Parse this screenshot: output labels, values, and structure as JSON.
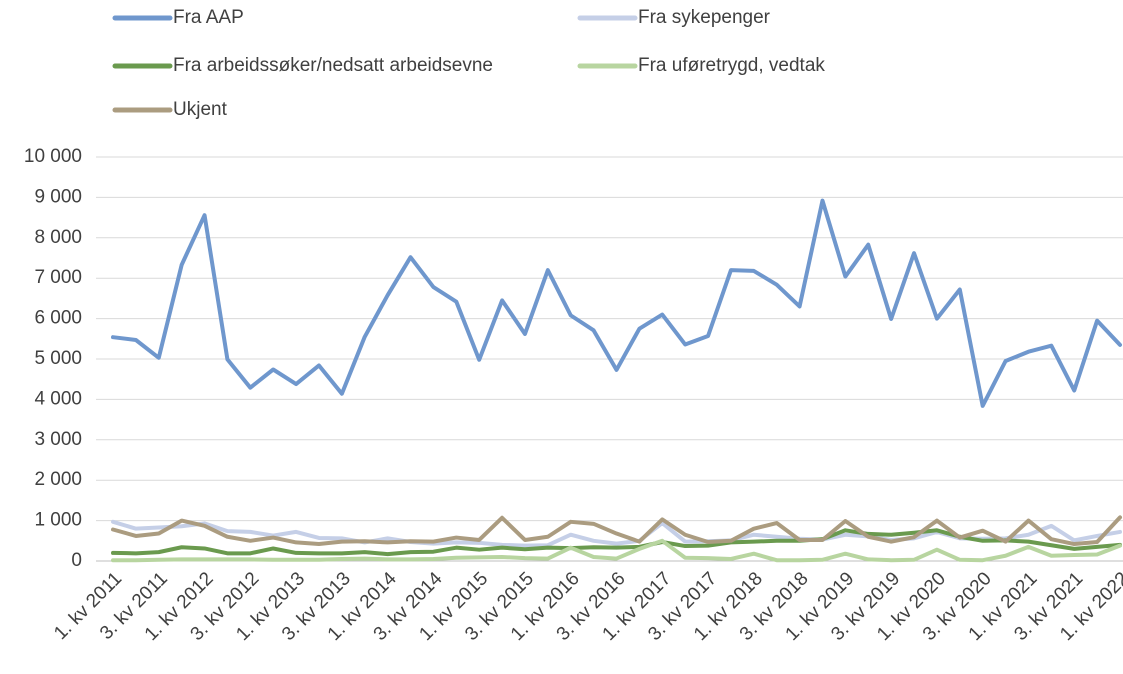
{
  "chart_data": {
    "type": "line",
    "categories": [
      "1. kv 2011",
      null,
      "3. kv 2011",
      null,
      "1. kv 2012",
      null,
      "3. kv 2012",
      null,
      "1. kv 2013",
      null,
      "3. kv 2013",
      null,
      "1. kv 2014",
      null,
      "3. kv 2014",
      null,
      "1. kv 2015",
      null,
      "3. kv 2015",
      null,
      "1. kv 2016",
      null,
      "3. kv 2016",
      null,
      "1. kv 2017",
      null,
      "3. kv 2017",
      null,
      "1. kv 2018",
      null,
      "3. kv 2018",
      null,
      "1. kv 2019",
      null,
      "3. kv 2019",
      null,
      "1. kv 2020",
      null,
      "3. kv 2020",
      null,
      "1. kv 2021",
      null,
      "3. kv 2021",
      null,
      "1. kv 2022"
    ],
    "series": [
      {
        "name": "Fra AAP",
        "color": "#6f97cd",
        "values": [
          5540,
          5470,
          5030,
          7330,
          8560,
          4990,
          4290,
          4740,
          4380,
          4840,
          4140,
          5550,
          6580,
          7520,
          6780,
          6420,
          4980,
          6450,
          5620,
          7200,
          6080,
          5710,
          4730,
          5750,
          6100,
          5360,
          5570,
          7200,
          7180,
          6840,
          6300,
          8920,
          7040,
          7830,
          5990,
          7620,
          6000,
          6720,
          3840,
          4950,
          5180,
          5330,
          4220,
          5950,
          5350
        ]
      },
      {
        "name": "Fra sykepenger",
        "color": "#c5cfe7",
        "values": [
          970,
          800,
          830,
          860,
          930,
          740,
          720,
          630,
          720,
          570,
          560,
          460,
          560,
          470,
          430,
          460,
          450,
          400,
          380,
          390,
          650,
          500,
          430,
          500,
          940,
          480,
          490,
          510,
          650,
          600,
          550,
          530,
          650,
          610,
          520,
          560,
          720,
          560,
          550,
          560,
          650,
          870,
          510,
          620,
          720
        ]
      },
      {
        "name": "Fra arbeidssøker/nedsatt arbeidsevne",
        "color": "#6a9a4e",
        "values": [
          200,
          190,
          220,
          340,
          310,
          190,
          190,
          310,
          200,
          190,
          190,
          220,
          170,
          220,
          230,
          330,
          280,
          330,
          290,
          330,
          320,
          340,
          330,
          350,
          470,
          370,
          380,
          460,
          480,
          500,
          500,
          540,
          760,
          670,
          650,
          700,
          760,
          600,
          500,
          510,
          480,
          390,
          300,
          350,
          400
        ]
      },
      {
        "name": "Fra uføretrygd, vedtak",
        "color": "#b8d5a0",
        "values": [
          20,
          20,
          30,
          40,
          40,
          40,
          40,
          30,
          30,
          30,
          50,
          60,
          40,
          40,
          50,
          80,
          90,
          100,
          70,
          60,
          330,
          100,
          60,
          300,
          500,
          80,
          70,
          50,
          180,
          20,
          20,
          30,
          180,
          40,
          20,
          30,
          280,
          30,
          20,
          130,
          350,
          130,
          150,
          160,
          380
        ]
      },
      {
        "name": "Ukjent",
        "color": "#ab9c80",
        "values": [
          780,
          620,
          680,
          1000,
          870,
          600,
          500,
          580,
          460,
          420,
          480,
          490,
          460,
          490,
          480,
          580,
          520,
          1070,
          520,
          600,
          970,
          920,
          680,
          480,
          1030,
          650,
          470,
          500,
          800,
          940,
          520,
          520,
          990,
          600,
          480,
          590,
          1000,
          580,
          750,
          480,
          1000,
          540,
          420,
          470,
          1080
        ]
      }
    ],
    "ylim": [
      0,
      10000
    ],
    "yticks": [
      0,
      {
        "value": 1000,
        "label": "1 000"
      },
      {
        "value": 2000,
        "label": "2 000"
      },
      {
        "value": 3000,
        "label": "3 000"
      },
      {
        "value": 4000,
        "label": "4 000"
      },
      {
        "value": 5000,
        "label": "5 000"
      },
      {
        "value": 6000,
        "label": "6 000"
      },
      {
        "value": 7000,
        "label": "7 000"
      },
      {
        "value": 8000,
        "label": "8 000"
      },
      {
        "value": 9000,
        "label": "9 000"
      },
      {
        "value": 10000,
        "label": "10 000"
      }
    ],
    "grid": true
  }
}
